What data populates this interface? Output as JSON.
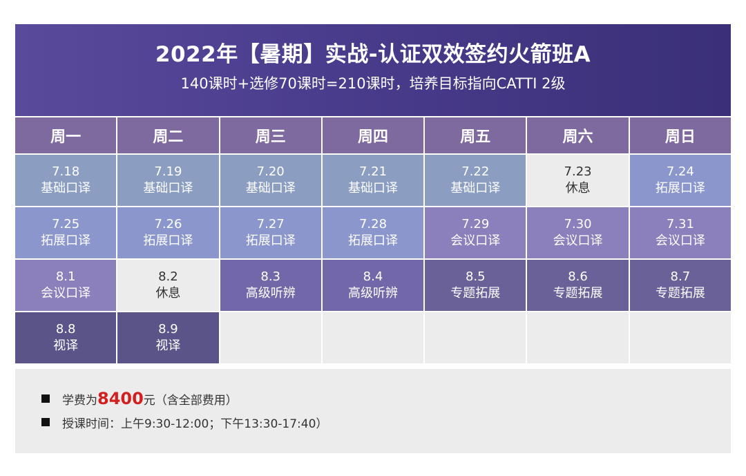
{
  "header": {
    "title": "2022年【暑期】实战-认证双效签约火箭班A",
    "subtitle": "140课时+选修70课时=210课时，培养目标指向CATTI 2级"
  },
  "weekdays": [
    "周一",
    "周二",
    "周三",
    "周四",
    "周五",
    "周六",
    "周日"
  ],
  "rows": [
    [
      {
        "date": "7.18",
        "label": "基础口译",
        "type": "basic"
      },
      {
        "date": "7.19",
        "label": "基础口译",
        "type": "basic"
      },
      {
        "date": "7.20",
        "label": "基础口译",
        "type": "basic"
      },
      {
        "date": "7.21",
        "label": "基础口译",
        "type": "basic"
      },
      {
        "date": "7.22",
        "label": "基础口译",
        "type": "basic"
      },
      {
        "date": "7.23",
        "label": "休息",
        "type": "rest"
      },
      {
        "date": "7.24",
        "label": "拓展口译",
        "type": "ext"
      }
    ],
    [
      {
        "date": "7.25",
        "label": "拓展口译",
        "type": "ext"
      },
      {
        "date": "7.26",
        "label": "拓展口译",
        "type": "ext"
      },
      {
        "date": "7.27",
        "label": "拓展口译",
        "type": "ext"
      },
      {
        "date": "7.28",
        "label": "拓展口译",
        "type": "ext"
      },
      {
        "date": "7.29",
        "label": "会议口译",
        "type": "conf"
      },
      {
        "date": "7.30",
        "label": "会议口译",
        "type": "conf"
      },
      {
        "date": "7.31",
        "label": "会议口译",
        "type": "conf"
      }
    ],
    [
      {
        "date": "8.1",
        "label": "会议口译",
        "type": "conf"
      },
      {
        "date": "8.2",
        "label": "休息",
        "type": "rest"
      },
      {
        "date": "8.3",
        "label": "高级听辨",
        "type": "adv"
      },
      {
        "date": "8.4",
        "label": "高级听辨",
        "type": "adv"
      },
      {
        "date": "8.5",
        "label": "专题拓展",
        "type": "topic"
      },
      {
        "date": "8.6",
        "label": "专题拓展",
        "type": "topic"
      },
      {
        "date": "8.7",
        "label": "专题拓展",
        "type": "topic"
      }
    ],
    [
      {
        "date": "8.8",
        "label": "视译",
        "type": "sight"
      },
      {
        "date": "8.9",
        "label": "视译",
        "type": "sight"
      },
      {
        "type": "empty"
      },
      {
        "type": "empty"
      },
      {
        "type": "empty"
      },
      {
        "type": "empty"
      },
      {
        "type": "empty"
      }
    ]
  ],
  "footer": {
    "fee_prefix": "学费为",
    "fee_amount": "8400",
    "fee_suffix": "元（含全部费用）",
    "schedule": "授课时间：上午9:30-12:00；下午13:30-17:40）"
  }
}
